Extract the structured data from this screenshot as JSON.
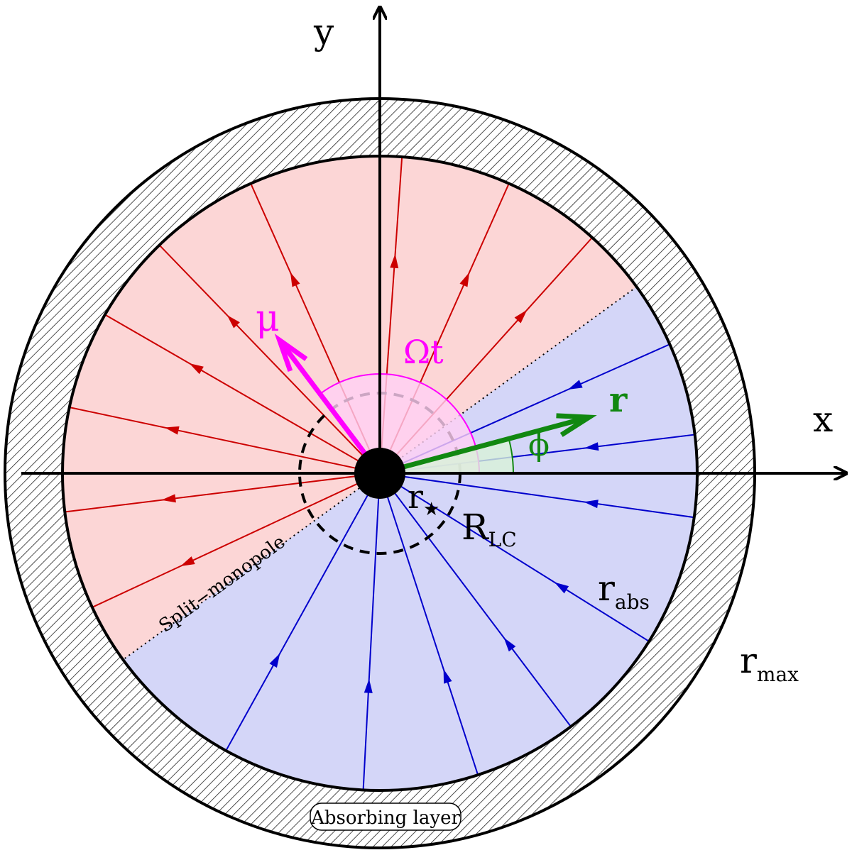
{
  "axes": {
    "x_label": "x",
    "y_label": "y"
  },
  "labels": {
    "mu": "μ",
    "omega_t": "Ωt",
    "r_vector": "r",
    "phi": "ϕ",
    "r_star_base": "r",
    "r_star_sub": "★",
    "r_lc_base": "R",
    "r_lc_sub": "LC",
    "r_abs_base": "r",
    "r_abs_sub": "abs",
    "r_max_base": "r",
    "r_max_sub": "max",
    "split_monopole": "Split−monopole",
    "absorbing_layer": "Absorbing layer"
  },
  "colors": {
    "outward_region": "#fcd6d6",
    "inward_region": "#d4d6f8",
    "outward_lines": "#cc0000",
    "inward_lines": "#0000cc",
    "mu_vector": "#ff00ff",
    "r_vector": "#118811",
    "omega_arc_fill": "#ffd0f4"
  },
  "field_line_angles_deg": {
    "outward": [
      86,
      66,
      48,
      134,
      114,
      150,
      168,
      187,
      205
    ],
    "inward": [
      24,
      7,
      352,
      328,
      307,
      288,
      267,
      241
    ]
  },
  "angles_deg": {
    "mu": 127,
    "r_vector": 15,
    "split_monopole": 36
  }
}
